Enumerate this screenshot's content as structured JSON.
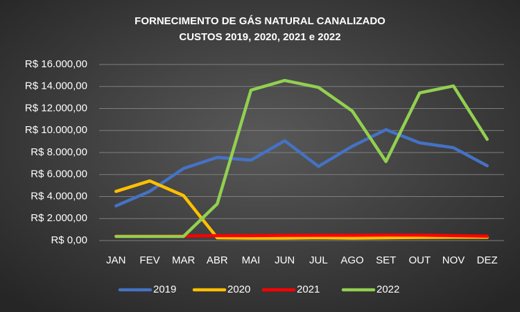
{
  "chart_data": {
    "type": "line",
    "title": "FORNECIMENTO DE GÁS NATURAL CANALIZADO",
    "subtitle": "CUSTOS 2019, 2020, 2021 e 2022",
    "categories": [
      "JAN",
      "FEV",
      "MAR",
      "ABR",
      "MAI",
      "JUN",
      "JUL",
      "AGO",
      "SET",
      "OUT",
      "NOV",
      "DEZ"
    ],
    "series": [
      {
        "name": "2019",
        "color": "#4472c4",
        "values": [
          3150,
          4470,
          6550,
          7560,
          7310,
          9070,
          6740,
          8570,
          10080,
          8880,
          8440,
          6800
        ]
      },
      {
        "name": "2020",
        "color": "#ffc000",
        "values": [
          4470,
          5420,
          4090,
          250,
          220,
          220,
          260,
          220,
          250,
          280,
          300,
          300
        ]
      },
      {
        "name": "2021",
        "color": "#ff0000",
        "values": [
          400,
          400,
          420,
          450,
          450,
          470,
          480,
          480,
          500,
          500,
          450,
          400
        ]
      },
      {
        "name": "2022",
        "color": "#92d050",
        "values": [
          380,
          380,
          380,
          3340,
          13670,
          14550,
          13920,
          11780,
          7180,
          13420,
          14050,
          9200
        ]
      }
    ],
    "ylim": [
      0,
      16000
    ],
    "yticks": [
      {
        "value": 0,
        "label": "R$ 0,00"
      },
      {
        "value": 2000,
        "label": "R$ 2.000,00"
      },
      {
        "value": 4000,
        "label": "R$ 4.000,00"
      },
      {
        "value": 6000,
        "label": "R$ 6.000,00"
      },
      {
        "value": 8000,
        "label": "R$ 8.000,00"
      },
      {
        "value": 10000,
        "label": "R$ 10.000,00"
      },
      {
        "value": 12000,
        "label": "R$ 12.000,00"
      },
      {
        "value": 14000,
        "label": "R$ 14.000,00"
      },
      {
        "value": 16000,
        "label": "R$ 16.000,00"
      }
    ],
    "grid": true,
    "legend": "bottom"
  }
}
